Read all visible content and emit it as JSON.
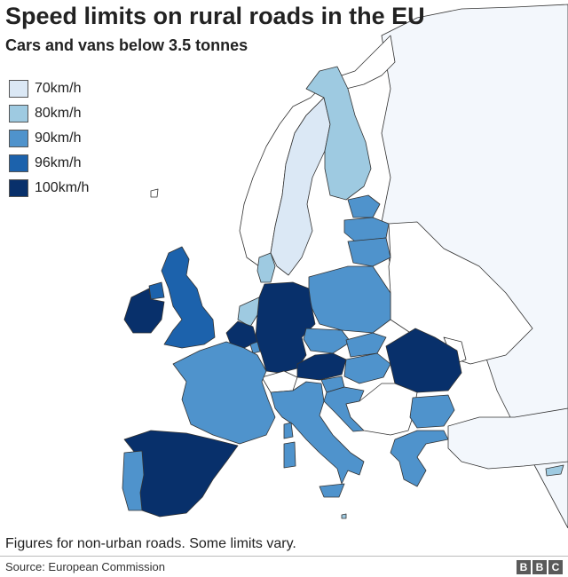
{
  "header": {
    "title": "Speed limits on rural roads in the EU",
    "subtitle": "Cars and vans below 3.5 tonnes"
  },
  "legend": {
    "items": [
      {
        "label": "70km/h",
        "color": "#dbe8f5"
      },
      {
        "label": "80km/h",
        "color": "#9ecae1"
      },
      {
        "label": "90km/h",
        "color": "#4f93cc"
      },
      {
        "label": "96km/h",
        "color": "#1c62ac"
      },
      {
        "label": "100km/h",
        "color": "#08306b"
      }
    ]
  },
  "map_data": {
    "non_eu_color": "#ffffff",
    "far_east_color": "#f3f7fc",
    "countries": [
      {
        "name": "Ireland",
        "limit": "100km/h"
      },
      {
        "name": "United Kingdom",
        "limit": "96km/h"
      },
      {
        "name": "Iceland",
        "limit": "none"
      },
      {
        "name": "Portugal",
        "limit": "90km/h"
      },
      {
        "name": "Spain",
        "limit": "100km/h"
      },
      {
        "name": "France",
        "limit": "90km/h"
      },
      {
        "name": "Belgium",
        "limit": "100km/h"
      },
      {
        "name": "Netherlands",
        "limit": "80km/h"
      },
      {
        "name": "Luxembourg",
        "limit": "90km/h"
      },
      {
        "name": "Germany",
        "limit": "100km/h"
      },
      {
        "name": "Denmark",
        "limit": "80km/h"
      },
      {
        "name": "Sweden",
        "limit": "70km/h"
      },
      {
        "name": "Finland",
        "limit": "80km/h"
      },
      {
        "name": "Estonia",
        "limit": "90km/h"
      },
      {
        "name": "Latvia",
        "limit": "90km/h"
      },
      {
        "name": "Lithuania",
        "limit": "90km/h"
      },
      {
        "name": "Poland",
        "limit": "90km/h"
      },
      {
        "name": "Czech Republic",
        "limit": "90km/h"
      },
      {
        "name": "Slovakia",
        "limit": "90km/h"
      },
      {
        "name": "Austria",
        "limit": "100km/h"
      },
      {
        "name": "Hungary",
        "limit": "90km/h"
      },
      {
        "name": "Slovenia",
        "limit": "90km/h"
      },
      {
        "name": "Croatia",
        "limit": "90km/h"
      },
      {
        "name": "Italy",
        "limit": "90km/h"
      },
      {
        "name": "Romania",
        "limit": "100km/h"
      },
      {
        "name": "Bulgaria",
        "limit": "90km/h"
      },
      {
        "name": "Greece",
        "limit": "90km/h"
      },
      {
        "name": "Cyprus",
        "limit": "80km/h"
      },
      {
        "name": "Malta",
        "limit": "80km/h"
      }
    ]
  },
  "footer": {
    "note": "Figures for non-urban roads. Some limits vary.",
    "source": "Source: European Commission",
    "logo_letters": [
      "B",
      "B",
      "C"
    ]
  }
}
